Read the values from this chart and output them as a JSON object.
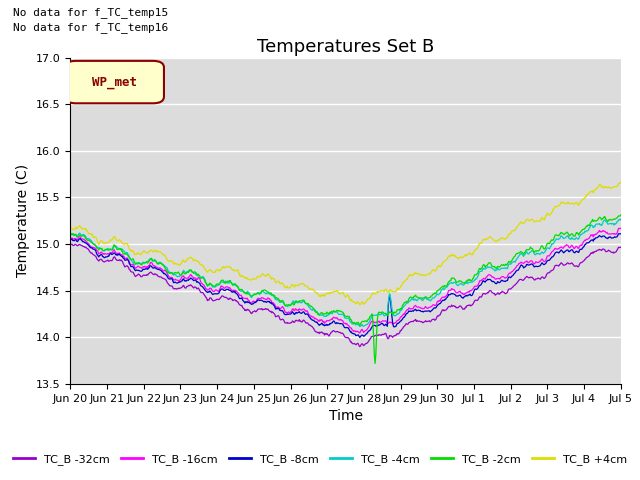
{
  "title": "Temperatures Set B",
  "xlabel": "Time",
  "ylabel": "Temperature (C)",
  "ylim": [
    13.5,
    17.0
  ],
  "yticks": [
    13.5,
    14.0,
    14.5,
    15.0,
    15.5,
    16.0,
    16.5,
    17.0
  ],
  "annotations": [
    "No data for f_TC_temp15",
    "No data for f_TC_temp16"
  ],
  "wp_met_label": "WP_met",
  "series": [
    {
      "label": "TC_B -32cm",
      "color": "#9900cc"
    },
    {
      "label": "TC_B -16cm",
      "color": "#ff00ff"
    },
    {
      "label": "TC_B -8cm",
      "color": "#0000cc"
    },
    {
      "label": "TC_B -4cm",
      "color": "#00cccc"
    },
    {
      "label": "TC_B -2cm",
      "color": "#00dd00"
    },
    {
      "label": "TC_B +4cm",
      "color": "#dddd00"
    }
  ],
  "xtick_labels": [
    "Jun 20",
    "Jun 21",
    "Jun 22",
    "Jun 23",
    "Jun 24",
    "Jun 25",
    "Jun 26",
    "Jun 27",
    "Jun 28",
    "Jun 29",
    "Jun 30",
    "Jul 1",
    "Jul 2",
    "Jul 3",
    "Jul 4",
    "Jul 5"
  ],
  "axes_bg": "#dcdcdc",
  "fig_bg": "#ffffff",
  "grid_color": "#ffffff",
  "title_fontsize": 13,
  "axis_label_fontsize": 10,
  "tick_fontsize": 8
}
